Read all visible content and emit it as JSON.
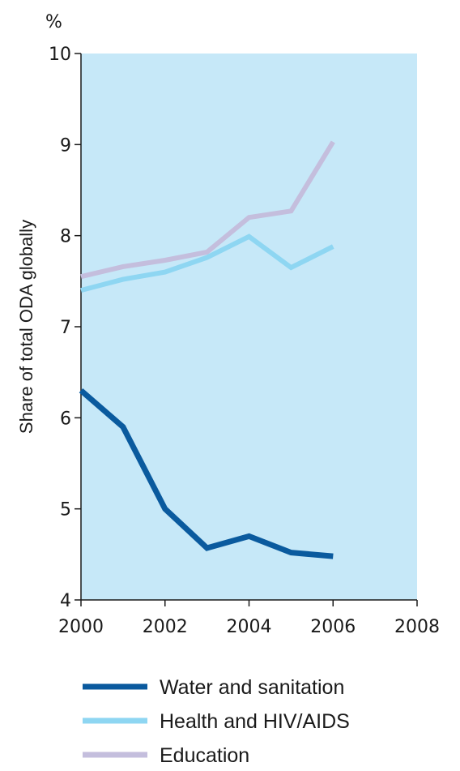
{
  "chart_data": {
    "type": "line",
    "unit_label": "%",
    "ylabel": "Share of total ODA globally",
    "xlabel": "",
    "xlim": [
      2000,
      2008
    ],
    "ylim": [
      4,
      10
    ],
    "xticks": [
      "2000",
      "2002",
      "2004",
      "2006",
      "2008"
    ],
    "yticks": [
      "4",
      "5",
      "6",
      "7",
      "8",
      "9",
      "10"
    ],
    "x": [
      2000,
      2001,
      2002,
      2003,
      2004,
      2005,
      2006
    ],
    "series": [
      {
        "name": "Water and sanitation",
        "color": "#0a5a9e",
        "values": [
          6.3,
          5.9,
          5.0,
          4.57,
          4.7,
          4.52,
          4.48
        ]
      },
      {
        "name": "Health and HIV/AIDS",
        "color": "#8ed6f2",
        "values": [
          7.4,
          7.52,
          7.6,
          7.76,
          7.99,
          7.65,
          7.88
        ]
      },
      {
        "name": "Education",
        "color": "#c4bedd",
        "values": [
          7.55,
          7.66,
          7.73,
          7.82,
          8.2,
          8.27,
          9.03
        ]
      }
    ],
    "grid": false,
    "legend_position": "bottom",
    "plot_background": "#c6e8f8"
  }
}
